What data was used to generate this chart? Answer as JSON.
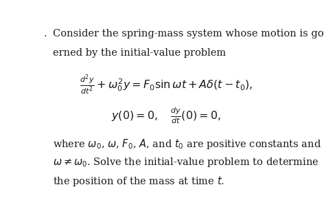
{
  "background_color": "#ffffff",
  "figsize": [
    4.72,
    3.01
  ],
  "dpi": 100,
  "bullet": ".",
  "line1": "Consider the spring-mass system whose motion is gov-",
  "line2": "erned by the initial-value problem",
  "eq_main": "$\\frac{d^2y}{dt^2} + \\omega_0^2 y = F_0 \\sin \\omega t + A\\delta(t - t_0),$",
  "eq_ic": "$y(0) = 0, \\quad \\frac{dy}{dt}(0) = 0,$",
  "line3": "where $\\omega_0$, $\\omega$, $F_0$, $A$, and $t_0$ are positive constants and",
  "line4": "$\\omega \\neq \\omega_0$. Solve the initial-value problem to determine",
  "line5": "the position of the mass at time $t$.",
  "font_size_text": 10.5,
  "font_size_eq": 11.5,
  "text_color": "#1a1a1a"
}
